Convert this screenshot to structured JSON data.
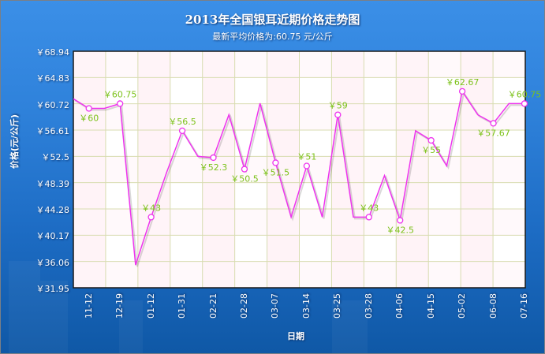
{
  "header": {
    "title": "2013年全国银耳近期价格走势图",
    "subtitle": "最新平均价格为:60.75 元/公斤"
  },
  "axes": {
    "ylabel": "价格(元/公斤)",
    "xlabel": "日期",
    "yticks": [
      "￥68.94",
      "￥64.83",
      "￥60.72",
      "￥56.61",
      "￥52.5",
      "￥48.39",
      "￥44.28",
      "￥40.17",
      "￥36.06",
      "￥31.95"
    ],
    "xticks": [
      "11-12",
      "12-19",
      "01-12",
      "01-31",
      "02-21",
      "02-28",
      "03-07",
      "03-14",
      "03-25",
      "03-28",
      "04-06",
      "04-15",
      "05-02",
      "06-08",
      "07-16"
    ]
  },
  "colors": {
    "line": "#ee33ee",
    "label": "#7cc21a",
    "grid": "#d8dcb0",
    "background_top": "#3b8fe7",
    "background_bottom": "#0f58a6"
  },
  "chart_data": {
    "type": "line",
    "title": "2013年全国银耳近期价格走势图",
    "subtitle": "最新平均价格为:60.75 元/公斤",
    "xlabel": "日期",
    "ylabel": "价格(元/公斤)",
    "ylim": [
      31.95,
      68.94
    ],
    "grid": true,
    "categories": [
      "11-12",
      "12-19",
      "01-12",
      "01-31",
      "02-21",
      "02-28",
      "03-07",
      "03-14",
      "03-25",
      "03-28",
      "04-06",
      "04-15",
      "05-02",
      "06-08",
      "07-16"
    ],
    "labeled_values": [
      60,
      60.75,
      43,
      56.5,
      52.3,
      50.5,
      51.5,
      51,
      59,
      43,
      42.5,
      55,
      62.67,
      57.67,
      60.75
    ],
    "series": [
      {
        "name": "价格",
        "values": [
          61.5,
          60,
          60,
          60.75,
          35.5,
          43,
          50,
          56.5,
          52.5,
          52.3,
          59,
          50.5,
          60.8,
          51.5,
          43,
          51,
          43,
          59,
          43,
          43,
          49.5,
          42.5,
          56.5,
          55,
          51,
          62.67,
          59,
          57.67,
          60.75,
          60.75
        ],
        "labeled_indices": [
          1,
          3,
          5,
          7,
          9,
          11,
          13,
          15,
          17,
          19,
          21,
          23,
          25,
          27,
          29
        ]
      }
    ]
  }
}
